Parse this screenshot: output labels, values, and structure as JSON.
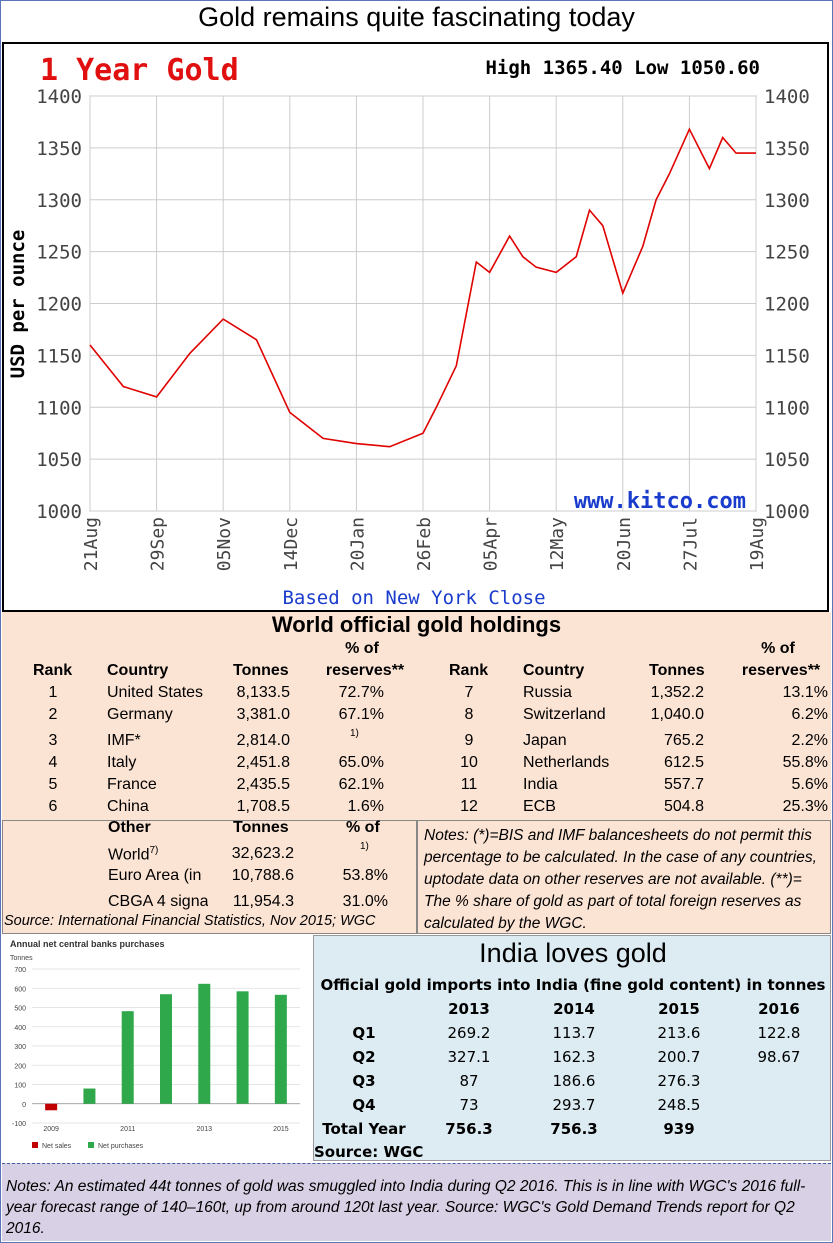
{
  "page_title": "Gold remains quite fascinating today",
  "chart_data": {
    "type": "line",
    "title": "1 Year Gold",
    "stats": "High 1365.40 Low 1050.60",
    "ylabel": "USD per ounce",
    "footer": "Based on New York Close",
    "watermark": "www.kitco.com",
    "ylim": [
      1000,
      1400
    ],
    "yticks": [
      "1400",
      "1350",
      "1300",
      "1250",
      "1200",
      "1150",
      "1100",
      "1050",
      "1000"
    ],
    "xticks": [
      "21Aug",
      "29Sep",
      "05Nov",
      "14Dec",
      "20Jan",
      "26Feb",
      "05Apr",
      "12May",
      "20Jun",
      "27Jul",
      "19Aug"
    ],
    "grid": true,
    "series": [
      {
        "x_index": [
          0,
          0.5,
          1,
          1.5,
          2,
          2.5,
          3,
          3.3,
          3.5,
          4,
          4.5,
          5,
          5.2,
          5.5,
          5.8,
          6,
          6.3,
          6.5,
          6.7,
          7,
          7.3,
          7.5,
          7.7,
          8,
          8.3,
          8.5,
          8.7,
          9,
          9.3,
          9.5,
          9.7,
          10
        ],
        "values": [
          1160,
          1120,
          1110,
          1152,
          1185,
          1165,
          1095,
          1080,
          1070,
          1065,
          1062,
          1075,
          1100,
          1140,
          1240,
          1230,
          1265,
          1245,
          1235,
          1230,
          1245,
          1290,
          1275,
          1210,
          1255,
          1300,
          1325,
          1368,
          1330,
          1360,
          1345,
          1345
        ]
      }
    ]
  },
  "holdings": {
    "title": "World official gold holdings",
    "headers": {
      "rank": "Rank",
      "country": "Country",
      "tonnes": "Tonnes",
      "pct1": "% of",
      "pct2": "reserves**"
    },
    "left": [
      {
        "rank": "1",
        "country": "United States",
        "tonnes": "8,133.5",
        "pct": "72.7%"
      },
      {
        "rank": "2",
        "country": "Germany",
        "tonnes": "3,381.0",
        "pct": "67.1%"
      },
      {
        "rank": "3",
        "country": "IMF*",
        "tonnes": "2,814.0",
        "pct": "1)"
      },
      {
        "rank": "4",
        "country": "Italy",
        "tonnes": "2,451.8",
        "pct": "65.0%"
      },
      {
        "rank": "5",
        "country": "France",
        "tonnes": "2,435.5",
        "pct": "62.1%"
      },
      {
        "rank": "6",
        "country": "China",
        "tonnes": "1,708.5",
        "pct": "1.6%"
      }
    ],
    "right": [
      {
        "rank": "7",
        "country": "Russia",
        "tonnes": "1,352.2",
        "pct": "13.1%"
      },
      {
        "rank": "8",
        "country": "Switzerland",
        "tonnes": "1,040.0",
        "pct": "6.2%"
      },
      {
        "rank": "9",
        "country": "Japan",
        "tonnes": "765.2",
        "pct": "2.2%"
      },
      {
        "rank": "10",
        "country": "Netherlands",
        "tonnes": "612.5",
        "pct": "55.8%"
      },
      {
        "rank": "11",
        "country": "India",
        "tonnes": "557.7",
        "pct": "5.6%"
      },
      {
        "rank": "12",
        "country": "ECB",
        "tonnes": "504.8",
        "pct": "25.3%"
      }
    ],
    "other_headers": {
      "other": "Other",
      "tonnes": "Tonnes",
      "pct": "% of"
    },
    "other": [
      {
        "name": "World",
        "sup": "7)",
        "tonnes": "32,623.2",
        "pct": "1)"
      },
      {
        "name": "Euro Area (in",
        "tonnes": "10,788.6",
        "pct": "53.8%"
      },
      {
        "name": "CBGA 4 signa",
        "tonnes": "11,954.3",
        "pct": "31.0%"
      }
    ],
    "notes": "Notes: (*)=BIS and IMF balancesheets do not permit this percentage to be calculated.  In the case of any countries, uptodate data on other reserves are not available. (**)= The % share of gold as part of total foreign reserves as calculated by the WGC.",
    "source": "Source: International Financial Statistics, Nov 2015; WGC"
  },
  "wgc_chart": {
    "type": "bar",
    "title": "Annual net central banks purchases",
    "ylabel": "Tonnes",
    "yticks": [
      "700",
      "600",
      "500",
      "400",
      "300",
      "200",
      "100",
      "0",
      "-100"
    ],
    "xticks": [
      "2009",
      "2011",
      "2013",
      "2015"
    ],
    "categories": [
      "2009",
      "2010",
      "2011",
      "2012",
      "2013",
      "2014",
      "2015"
    ],
    "values": [
      -34,
      79,
      481,
      569,
      623,
      584,
      566
    ],
    "ylim": [
      -100,
      700
    ],
    "legend": {
      "net_sales": "Net sales",
      "net_purchases": "Net purchases"
    },
    "colors": {
      "net_sales": "#c00000",
      "net_purchases": "#2ea84a"
    }
  },
  "india": {
    "title": "India loves gold",
    "subtitle": "Official gold imports into India (fine gold content) in tonnes",
    "years": [
      "2013",
      "2014",
      "2015",
      "2016"
    ],
    "rows": [
      {
        "label": "Q1",
        "vals": [
          "269.2",
          "113.7",
          "213.6",
          "122.8"
        ]
      },
      {
        "label": "Q2",
        "vals": [
          "327.1",
          "162.3",
          "200.7",
          "98.67"
        ]
      },
      {
        "label": "Q3",
        "vals": [
          "87",
          "186.6",
          "276.3",
          ""
        ]
      },
      {
        "label": "Q4",
        "vals": [
          "73",
          "293.7",
          "248.5",
          ""
        ]
      },
      {
        "label": "Total Year",
        "vals": [
          "756.3",
          "756.3",
          "939",
          ""
        ]
      }
    ],
    "source": "Source: WGC"
  },
  "bottom_notes": "Notes: An estimated 44t tonnes of gold was smuggled into India during Q2 2016. This is in line with WGC's 2016 full-year forecast range of 140–160t, up from around 120t last year. Source: WGC's Gold Demand Trends report for Q2 2016."
}
